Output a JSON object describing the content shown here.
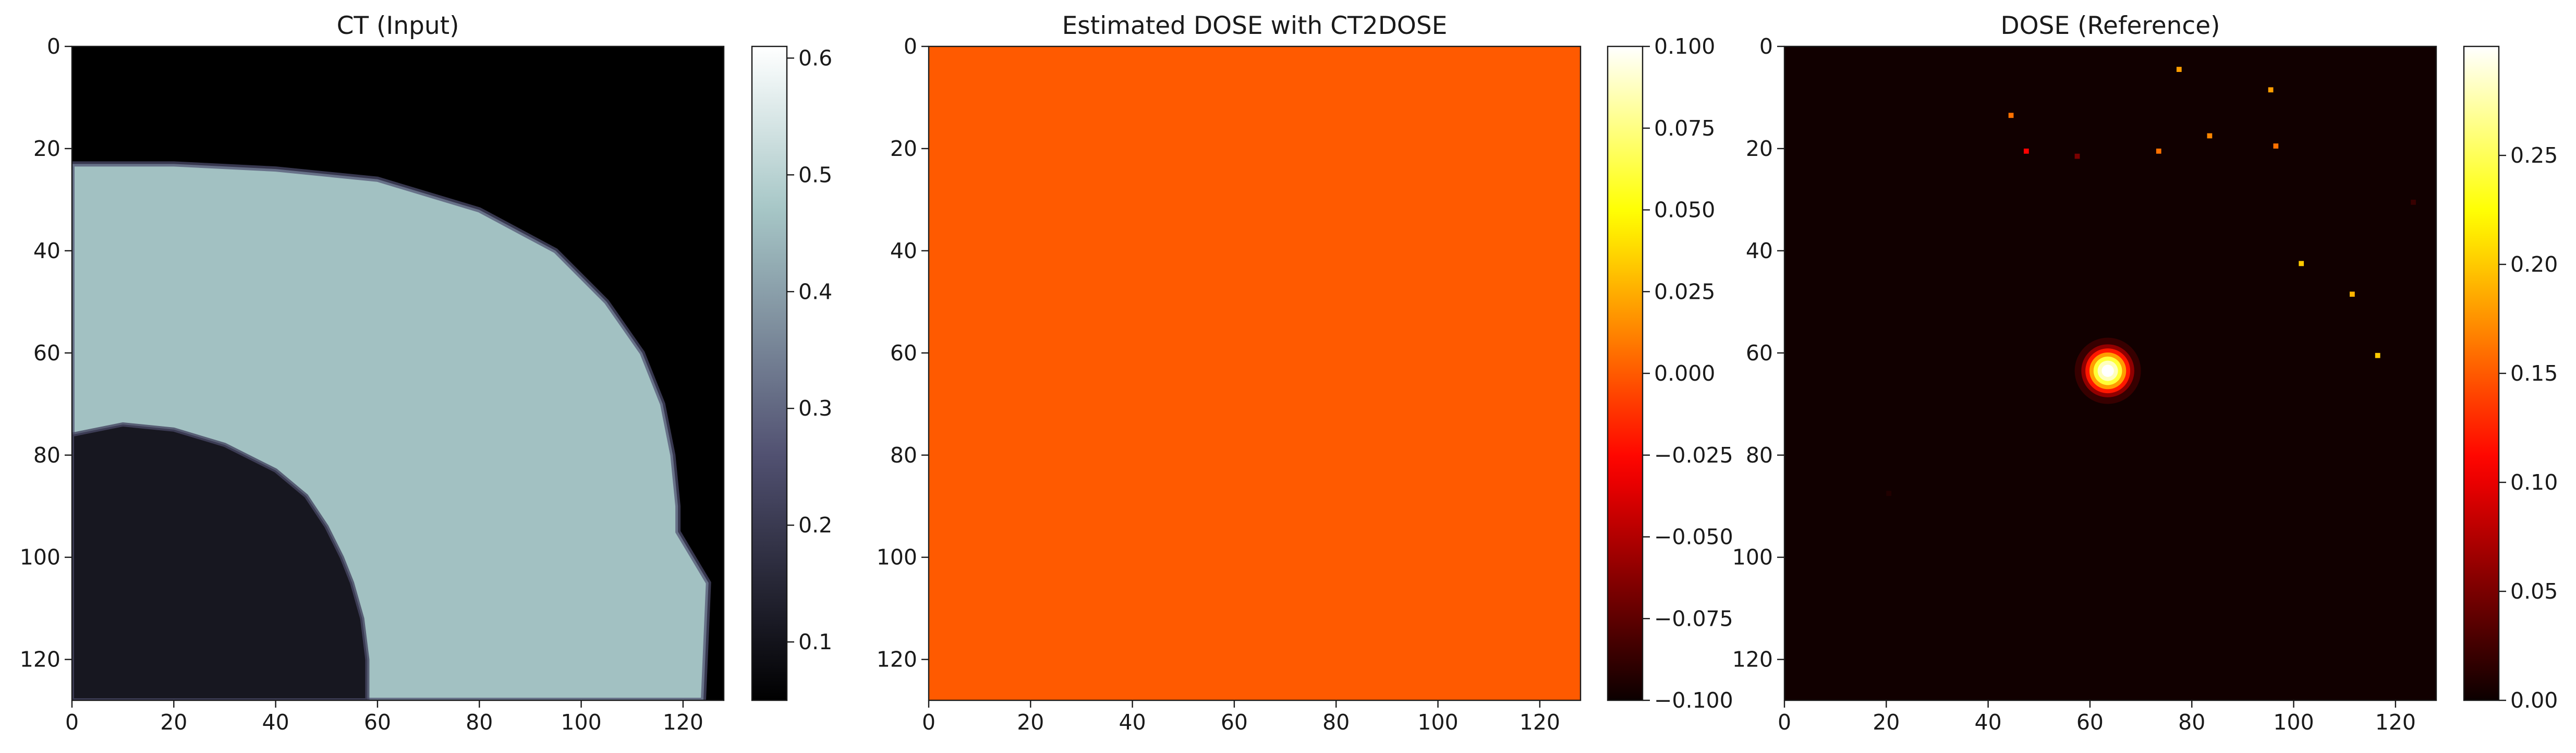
{
  "chart_data": [
    {
      "type": "heatmap",
      "title": "CT (Input)",
      "xlabel": "",
      "ylabel": "",
      "xlim": [
        0,
        128
      ],
      "ylim": [
        128,
        0
      ],
      "x_ticks": [
        "0",
        "20",
        "40",
        "60",
        "80",
        "100",
        "120"
      ],
      "y_ticks": [
        "0",
        "20",
        "40",
        "60",
        "80",
        "100",
        "120"
      ],
      "colormap": "bone",
      "colorbar": {
        "vmin": 0.05,
        "vmax": 0.61,
        "ticks": [
          {
            "v": 0.1,
            "label": "0.1"
          },
          {
            "v": 0.2,
            "label": "0.2"
          },
          {
            "v": 0.3,
            "label": "0.3"
          },
          {
            "v": 0.4,
            "label": "0.4"
          },
          {
            "v": 0.5,
            "label": "0.5"
          },
          {
            "v": 0.6,
            "label": "0.6"
          }
        ]
      },
      "image": {
        "background_value": 0.05,
        "tissue_value": 0.46,
        "tissue_boundary": [
          [
            0,
            23
          ],
          [
            20,
            23
          ],
          [
            40,
            24
          ],
          [
            60,
            26
          ],
          [
            80,
            32
          ],
          [
            95,
            40
          ],
          [
            105,
            50
          ],
          [
            112,
            60
          ],
          [
            116,
            70
          ],
          [
            118,
            80
          ],
          [
            119,
            90
          ],
          [
            119,
            95
          ],
          [
            122,
            100
          ],
          [
            125,
            105
          ],
          [
            124,
            128
          ]
        ],
        "lung_boundary": [
          [
            0,
            76
          ],
          [
            10,
            74
          ],
          [
            20,
            75
          ],
          [
            30,
            78
          ],
          [
            40,
            83
          ],
          [
            46,
            88
          ],
          [
            50,
            94
          ],
          [
            53,
            100
          ],
          [
            55,
            105
          ],
          [
            57,
            112
          ],
          [
            58,
            120
          ],
          [
            58,
            128
          ]
        ]
      }
    },
    {
      "type": "heatmap",
      "title": "Estimated DOSE with CT2DOSE",
      "xlabel": "",
      "ylabel": "",
      "xlim": [
        0,
        128
      ],
      "ylim": [
        128,
        0
      ],
      "x_ticks": [
        "0",
        "20",
        "40",
        "60",
        "80",
        "100",
        "120"
      ],
      "y_ticks": [
        "0",
        "20",
        "40",
        "60",
        "80",
        "100",
        "120"
      ],
      "colormap": "hot",
      "colorbar": {
        "vmin": -0.1,
        "vmax": 0.1,
        "ticks": [
          {
            "v": -0.1,
            "label": "−0.100"
          },
          {
            "v": -0.075,
            "label": "−0.075"
          },
          {
            "v": -0.05,
            "label": "−0.050"
          },
          {
            "v": -0.025,
            "label": "−0.025"
          },
          {
            "v": 0.0,
            "label": "0.000"
          },
          {
            "v": 0.025,
            "label": "0.025"
          },
          {
            "v": 0.05,
            "label": "0.050"
          },
          {
            "v": 0.075,
            "label": "0.075"
          },
          {
            "v": 0.1,
            "label": "0.100"
          }
        ]
      },
      "image": {
        "uniform_value": 0.0
      }
    },
    {
      "type": "heatmap",
      "title": "DOSE (Reference)",
      "xlabel": "",
      "ylabel": "",
      "xlim": [
        0,
        128
      ],
      "ylim": [
        128,
        0
      ],
      "x_ticks": [
        "0",
        "20",
        "40",
        "60",
        "80",
        "100",
        "120"
      ],
      "y_ticks": [
        "0",
        "20",
        "40",
        "60",
        "80",
        "100",
        "120"
      ],
      "colormap": "hot",
      "colorbar": {
        "vmin": 0.0,
        "vmax": 0.3,
        "ticks": [
          {
            "v": 0.0,
            "label": "0.00"
          },
          {
            "v": 0.05,
            "label": "0.05"
          },
          {
            "v": 0.1,
            "label": "0.10"
          },
          {
            "v": 0.15,
            "label": "0.15"
          },
          {
            "v": 0.2,
            "label": "0.20"
          },
          {
            "v": 0.25,
            "label": "0.25"
          }
        ]
      },
      "image": {
        "background_value": 0.003,
        "hotspot": {
          "x": 63.5,
          "y": 63.5,
          "peak": 0.3
        },
        "points": [
          {
            "x": 77,
            "y": 4,
            "v": 0.18
          },
          {
            "x": 95,
            "y": 8,
            "v": 0.18
          },
          {
            "x": 44,
            "y": 13,
            "v": 0.16
          },
          {
            "x": 83,
            "y": 17,
            "v": 0.17
          },
          {
            "x": 47,
            "y": 20,
            "v": 0.11
          },
          {
            "x": 57,
            "y": 21,
            "v": 0.05
          },
          {
            "x": 73,
            "y": 20,
            "v": 0.16
          },
          {
            "x": 96,
            "y": 19,
            "v": 0.16
          },
          {
            "x": 101,
            "y": 42,
            "v": 0.2
          },
          {
            "x": 111,
            "y": 48,
            "v": 0.19
          },
          {
            "x": 116,
            "y": 60,
            "v": 0.2
          },
          {
            "x": 123,
            "y": 30,
            "v": 0.02
          },
          {
            "x": 20,
            "y": 87,
            "v": 0.01
          }
        ]
      }
    }
  ]
}
